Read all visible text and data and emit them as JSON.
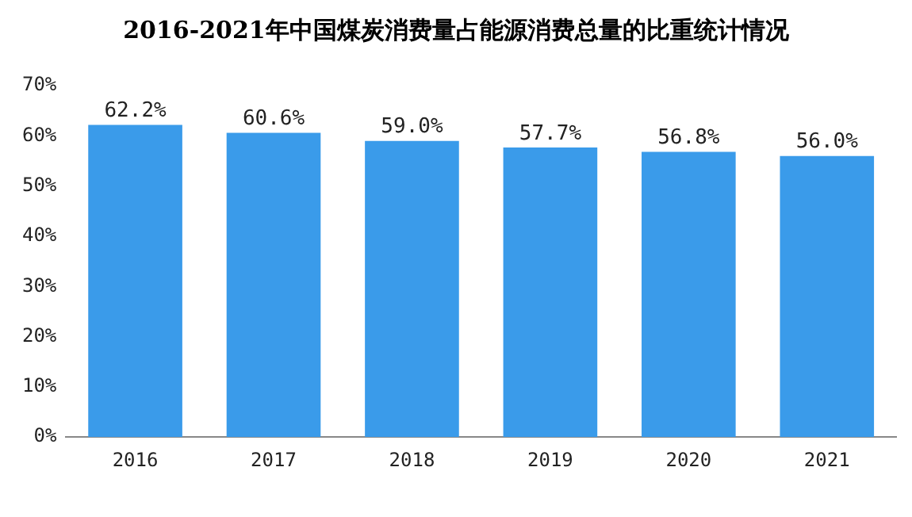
{
  "chart_data": {
    "type": "bar",
    "title": "2016-2021年中国煤炭消费量占能源消费总量的比重统计情况",
    "categories": [
      "2016",
      "2017",
      "2018",
      "2019",
      "2020",
      "2021"
    ],
    "values": [
      62.2,
      60.6,
      59.0,
      57.7,
      56.8,
      56.0
    ],
    "value_labels": [
      "62.2%",
      "60.6%",
      "59.0%",
      "57.7%",
      "56.8%",
      "56.0%"
    ],
    "color": "#3a9bea",
    "ylim": [
      0,
      70
    ],
    "yticks": [
      {
        "value": 0,
        "label": "0%"
      },
      {
        "value": 10,
        "label": "10%"
      },
      {
        "value": 20,
        "label": "20%"
      },
      {
        "value": 30,
        "label": "30%"
      },
      {
        "value": 40,
        "label": "40%"
      },
      {
        "value": 50,
        "label": "50%"
      },
      {
        "value": 60,
        "label": "60%"
      },
      {
        "value": 70,
        "label": "70%"
      }
    ],
    "grid": false,
    "legend": false
  }
}
